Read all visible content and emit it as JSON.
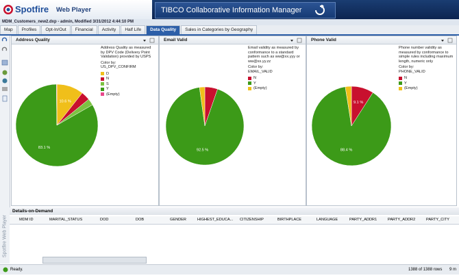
{
  "header": {
    "product": "Spotfire",
    "product_suffix": "Web Player",
    "banner": "TIBCO Collaborative Information Manager",
    "file_info": "MDM_Customers_new2.dxp - admin, Modified 3/31/2012 4:44:10 PM"
  },
  "tabs": [
    "Map",
    "Profiles",
    "Opt-In/Out",
    "Financial",
    "Activity",
    "Half Life",
    "Data Quality",
    "Sales in Categories by Geography"
  ],
  "active_tab": 6,
  "panels": [
    {
      "title": "Address Quality",
      "description": "Address Quality as measured by DPV Code (Delivery Point Validation) provided by USPS",
      "color_by_label": "Color by:",
      "color_by": "US_DPV_CONFIRM",
      "chart_data": {
        "type": "pie",
        "categories": [
          "D",
          "N",
          "S",
          "Y",
          "(Empty)"
        ],
        "values": [
          10.6,
          3.5,
          2.6,
          83.1,
          0.2
        ],
        "value_labels": [
          "10.6 %",
          null,
          null,
          "83.1 %",
          null
        ],
        "colors": [
          "#f0bf1a",
          "#c8102e",
          "#7cc242",
          "#3c9a18",
          "#e8478b"
        ]
      }
    },
    {
      "title": "Email Valid",
      "description": "Email validity as measured by conformance to a standard pattern such as ww@xx.yyy or ww@xx.yy.zz",
      "color_by_label": "Color by:",
      "color_by": "EMAIL_VALID",
      "chart_data": {
        "type": "pie",
        "categories": [
          "N",
          "Y",
          "(Empty)"
        ],
        "values": [
          5.3,
          92.5,
          2.2
        ],
        "value_labels": [
          null,
          "92.5 %",
          null
        ],
        "colors": [
          "#c8102e",
          "#3c9a18",
          "#f0bf1a"
        ]
      }
    },
    {
      "title": "Phone Valid",
      "description": "Phone number validity as measured by conformance to simple rules including maximum length, numeric only",
      "color_by_label": "Color by:",
      "color_by": "PHONE_VALID",
      "chart_data": {
        "type": "pie",
        "categories": [
          "N",
          "Y",
          "(Empty)"
        ],
        "values": [
          9.1,
          88.4,
          2.5
        ],
        "value_labels": [
          "9.1 %",
          "88.4 %",
          null
        ],
        "colors": [
          "#c8102e",
          "#3c9a18",
          "#f0bf1a"
        ]
      }
    }
  ],
  "details": {
    "title": "Details-on-Demand",
    "side_label": "Spotfire Web Player",
    "columns": [
      "MDM ID",
      "MARITAL_STATUS",
      "DOD",
      "DOB",
      "GENDER",
      "HIGHEST_EDUCA...",
      "CITIZENSHIP",
      "BIRTHPLACE",
      "LANGUAGE",
      "PARTY_ADDR1",
      "PARTY_ADDR2",
      "PARTY_CITY"
    ]
  },
  "status": {
    "ready": "Ready.",
    "rows": "1388 of 1388 rows",
    "extra": "9 m"
  }
}
